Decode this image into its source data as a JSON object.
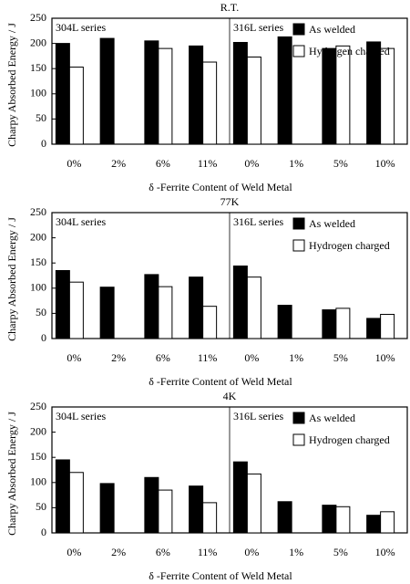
{
  "chart_data": [
    {
      "type": "bar",
      "title": "R.T.",
      "x_label": "δ -Ferrite Content of Weld Metal",
      "y_label": "Charpy Absorbed Energy / J",
      "annotations": [
        "304L series",
        "316L series"
      ],
      "categories": [
        "0%",
        "2%",
        "6%",
        "11%",
        "0%",
        "1%",
        "5%",
        "10%"
      ],
      "series": [
        {
          "name": "As welded",
          "color": "#000000",
          "values": [
            200,
            210,
            205,
            195,
            202,
            213,
            190,
            203
          ]
        },
        {
          "name": "Hydrogen charged",
          "color": "#ffffff",
          "values": [
            153,
            null,
            190,
            163,
            173,
            null,
            195,
            190
          ]
        }
      ],
      "ylim": [
        0,
        250
      ],
      "yticks": [
        0,
        50,
        100,
        150,
        200,
        250
      ],
      "legend": "top-right"
    },
    {
      "type": "bar",
      "title": "77K",
      "x_label": "δ -Ferrite Content of Weld Metal",
      "y_label": "Charpy Absorbed Energy / J",
      "annotations": [
        "304L series",
        "316L series"
      ],
      "categories": [
        "0%",
        "2%",
        "6%",
        "11%",
        "0%",
        "1%",
        "5%",
        "10%"
      ],
      "series": [
        {
          "name": "As welded",
          "color": "#000000",
          "values": [
            135,
            102,
            127,
            122,
            144,
            66,
            57,
            40
          ]
        },
        {
          "name": "Hydrogen charged",
          "color": "#ffffff",
          "values": [
            112,
            null,
            103,
            64,
            122,
            null,
            60,
            48
          ]
        }
      ],
      "ylim": [
        0,
        250
      ],
      "yticks": [
        0,
        50,
        100,
        150,
        200,
        250
      ],
      "legend": "top-right"
    },
    {
      "type": "bar",
      "title": "4K",
      "x_label": "δ -Ferrite Content of Weld Metal",
      "y_label": "Charpy Absorbed Energy / J",
      "annotations": [
        "304L series",
        "316L series"
      ],
      "categories": [
        "0%",
        "2%",
        "6%",
        "11%",
        "0%",
        "1%",
        "5%",
        "10%"
      ],
      "series": [
        {
          "name": "As welded",
          "color": "#000000",
          "values": [
            145,
            98,
            110,
            93,
            141,
            62,
            55,
            35
          ]
        },
        {
          "name": "Hydrogen charged",
          "color": "#ffffff",
          "values": [
            120,
            null,
            85,
            60,
            117,
            null,
            52,
            42
          ]
        }
      ],
      "ylim": [
        0,
        250
      ],
      "yticks": [
        0,
        50,
        100,
        150,
        200,
        250
      ],
      "legend": "top-right"
    }
  ]
}
